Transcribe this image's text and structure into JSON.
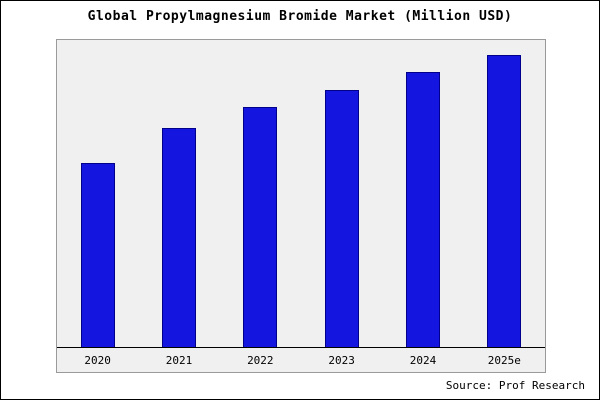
{
  "chart_data": {
    "type": "bar",
    "title": "Global Propylmagnesium Bromide Market (Million USD)",
    "categories": [
      "2020",
      "2021",
      "2022",
      "2023",
      "2024",
      "2025e"
    ],
    "values": [
      63,
      75,
      82,
      88,
      94,
      100
    ],
    "xlabel": "",
    "ylabel": "",
    "ylim": [
      0,
      105
    ],
    "grid": false,
    "legend": false,
    "bar_color": "#1515e0",
    "bar_edge_color": "#00008b",
    "plot_bg": "#f0f0f0"
  },
  "source": "Source: Prof Research"
}
